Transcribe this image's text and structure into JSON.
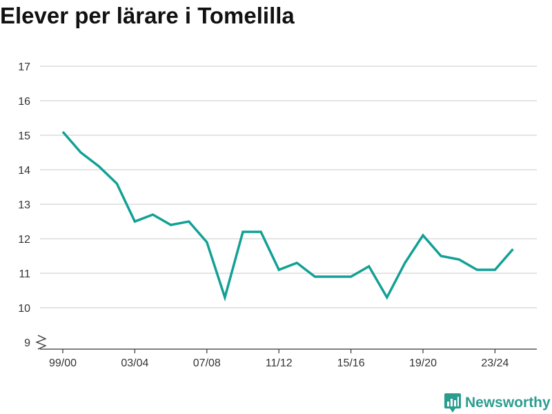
{
  "header": {
    "title": "Elever per lärare i Tomelilla"
  },
  "brand": {
    "name": "Newsworthy",
    "icon": "newsworthy-logo-icon",
    "color": "#2a9d8f"
  },
  "chart_data": {
    "type": "line",
    "title": "Elever per lärare i Tomelilla",
    "xlabel": "",
    "ylabel": "",
    "x": [
      "99/00",
      "00/01",
      "01/02",
      "02/03",
      "03/04",
      "04/05",
      "05/06",
      "06/07",
      "07/08",
      "08/09",
      "09/10",
      "10/11",
      "11/12",
      "12/13",
      "13/14",
      "14/15",
      "15/16",
      "16/17",
      "17/18",
      "18/19",
      "19/20",
      "20/21",
      "21/22",
      "22/23",
      "23/24",
      "24/25"
    ],
    "x_tick_labels": [
      "99/00",
      "03/04",
      "07/08",
      "11/12",
      "15/16",
      "19/20",
      "23/24"
    ],
    "y_ticks": [
      9,
      10,
      11,
      12,
      13,
      14,
      15,
      16,
      17
    ],
    "ylim": [
      9,
      17
    ],
    "y_axis_break": true,
    "grid": true,
    "series": [
      {
        "color": "#12a095",
        "values": [
          15.1,
          14.5,
          14.1,
          13.6,
          12.5,
          12.7,
          12.4,
          12.5,
          11.9,
          10.3,
          12.2,
          12.2,
          11.1,
          11.3,
          10.9,
          10.9,
          10.9,
          11.2,
          10.3,
          11.3,
          12.1,
          11.5,
          11.4,
          11.1,
          11.1,
          11.7
        ]
      }
    ]
  }
}
